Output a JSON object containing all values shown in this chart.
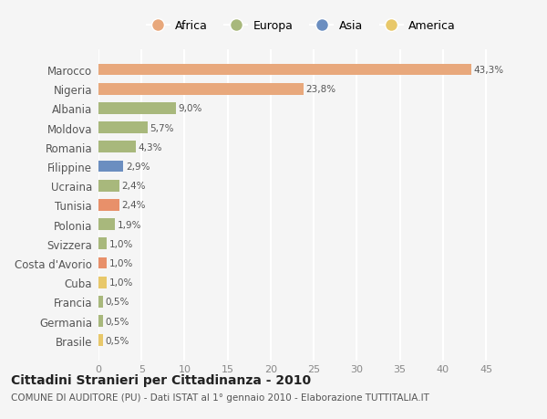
{
  "categories": [
    "Marocco",
    "Nigeria",
    "Albania",
    "Moldova",
    "Romania",
    "Filippine",
    "Ucraina",
    "Tunisia",
    "Polonia",
    "Svizzera",
    "Costa d'Avorio",
    "Cuba",
    "Francia",
    "Germania",
    "Brasile"
  ],
  "values": [
    43.3,
    23.8,
    9.0,
    5.7,
    4.3,
    2.9,
    2.4,
    2.4,
    1.9,
    1.0,
    1.0,
    1.0,
    0.5,
    0.5,
    0.5
  ],
  "labels": [
    "43,3%",
    "23,8%",
    "9,0%",
    "5,7%",
    "4,3%",
    "2,9%",
    "2,4%",
    "2,4%",
    "1,9%",
    "1,0%",
    "1,0%",
    "1,0%",
    "0,5%",
    "0,5%",
    "0,5%"
  ],
  "colors": [
    "#E8A87C",
    "#E8A87C",
    "#A8B87C",
    "#A8B87C",
    "#A8B87C",
    "#6B8EC0",
    "#A8B87C",
    "#E8906A",
    "#A8B87C",
    "#A8B87C",
    "#E8906A",
    "#E8C86A",
    "#A8B87C",
    "#A8B87C",
    "#E8C86A"
  ],
  "legend_labels": [
    "Africa",
    "Europa",
    "Asia",
    "America"
  ],
  "legend_colors": [
    "#E8A87C",
    "#A8B87C",
    "#6B8EC0",
    "#E8C86A"
  ],
  "title": "Cittadini Stranieri per Cittadinanza - 2010",
  "subtitle": "COMUNE DI AUDITORE (PU) - Dati ISTAT al 1° gennaio 2010 - Elaborazione TUTTITALIA.IT",
  "xlim": [
    0,
    47
  ],
  "background_color": "#f5f5f5",
  "grid_color": "#ffffff",
  "bar_height": 0.6
}
